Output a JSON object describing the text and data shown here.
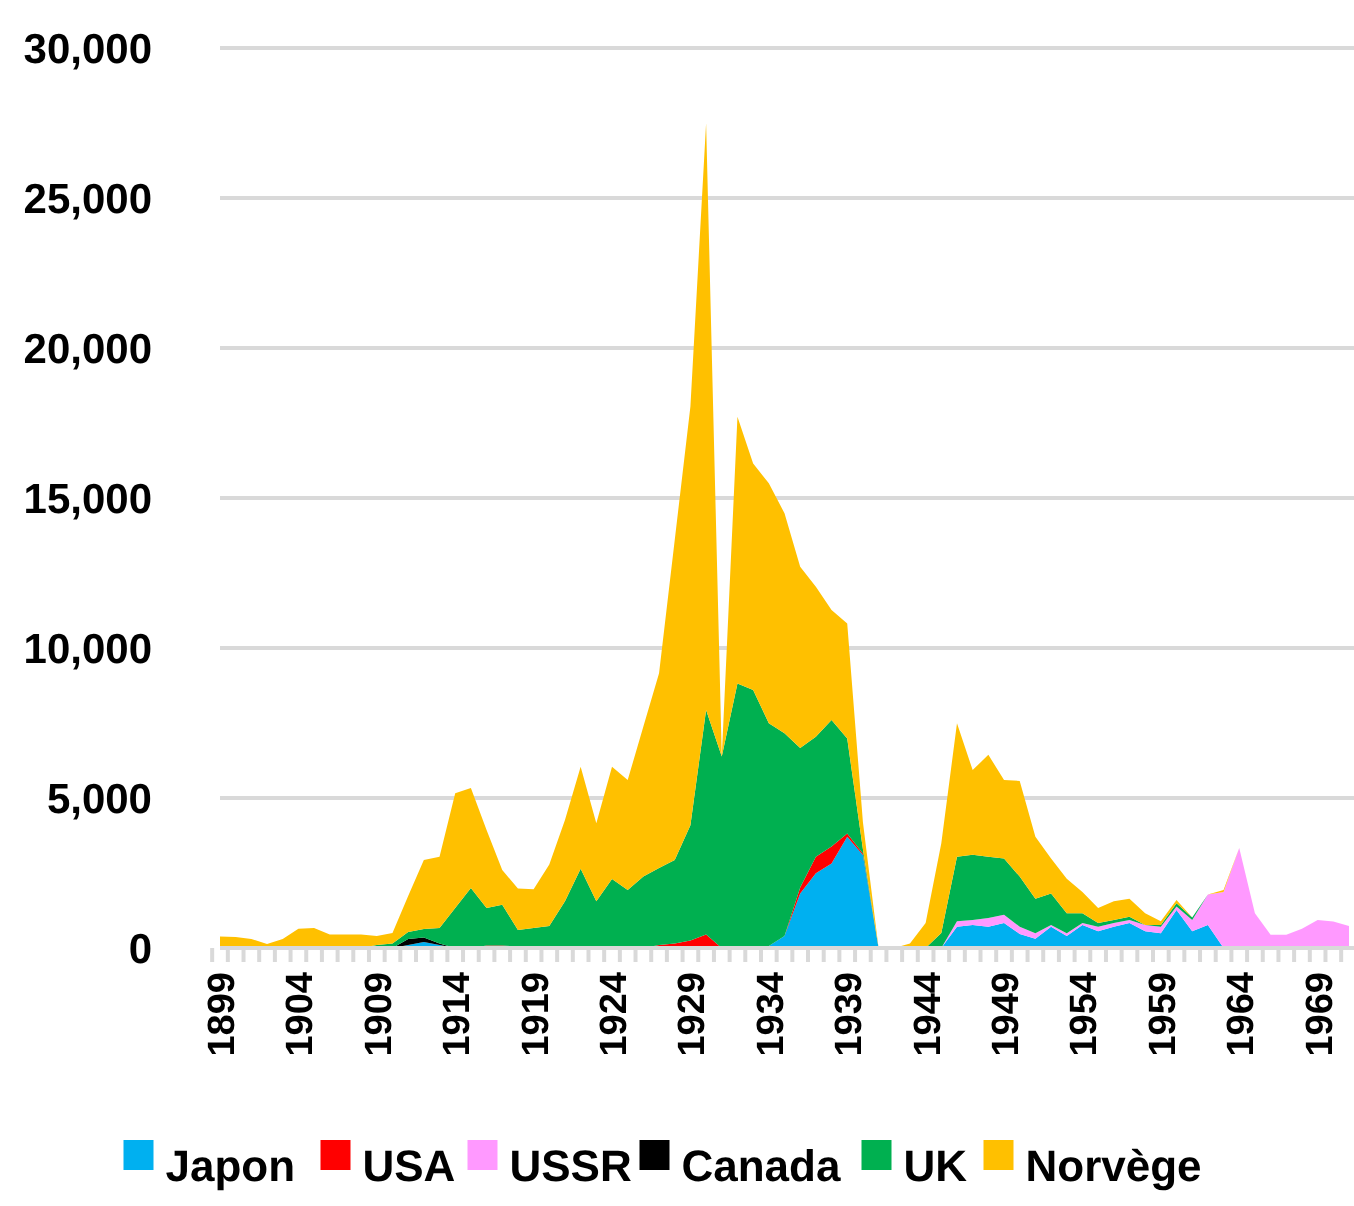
{
  "chart_data": {
    "type": "area",
    "stacked": true,
    "categories": [
      "1899",
      null,
      null,
      null,
      null,
      "1904",
      null,
      null,
      null,
      null,
      "1909",
      null,
      null,
      null,
      null,
      "1914",
      null,
      null,
      null,
      null,
      "1919",
      null,
      null,
      null,
      null,
      "1924",
      null,
      null,
      null,
      null,
      "1929",
      null,
      null,
      null,
      null,
      "1934",
      null,
      null,
      null,
      null,
      "1939",
      null,
      null,
      null,
      null,
      "1944",
      null,
      null,
      null,
      null,
      "1949",
      null,
      null,
      null,
      null,
      "1954",
      null,
      null,
      null,
      null,
      "1959",
      null,
      null,
      null,
      null,
      "1964",
      null,
      null,
      null,
      null,
      "1969",
      null,
      null
    ],
    "series": [
      {
        "name": "Japon",
        "color": "#00b0f0",
        "values": [
          null,
          null,
          null,
          null,
          null,
          null,
          null,
          null,
          null,
          null,
          null,
          0,
          100,
          200,
          100,
          0,
          null,
          null,
          null,
          null,
          null,
          null,
          null,
          null,
          null,
          null,
          null,
          null,
          null,
          null,
          null,
          null,
          null,
          null,
          0,
          70,
          400,
          1820,
          2490,
          2820,
          3710,
          3100,
          0,
          null,
          null,
          null,
          0,
          710,
          770,
          710,
          830,
          470,
          310,
          710,
          400,
          770,
          560,
          710,
          830,
          560,
          490,
          1270,
          560,
          770,
          0,
          null,
          null,
          null,
          null,
          null,
          null,
          null,
          null
        ]
      },
      {
        "name": "USA",
        "color": "#ff0000",
        "values": [
          null,
          null,
          null,
          null,
          null,
          null,
          null,
          null,
          null,
          null,
          null,
          null,
          null,
          null,
          null,
          null,
          0,
          80,
          80,
          50,
          0,
          null,
          null,
          null,
          null,
          null,
          null,
          0,
          100,
          150,
          250,
          450,
          0,
          null,
          null,
          null,
          0,
          200,
          550,
          560,
          110,
          50,
          0,
          null,
          null,
          null,
          null,
          null,
          null,
          null,
          null,
          null,
          null,
          null,
          null,
          null,
          null,
          null,
          null,
          null,
          null,
          null,
          null,
          null,
          null,
          null,
          null,
          null,
          null,
          null,
          null,
          null,
          null
        ]
      },
      {
        "name": "USSR",
        "color": "#ff99ff",
        "values": [
          null,
          null,
          null,
          null,
          null,
          null,
          null,
          null,
          null,
          null,
          null,
          null,
          null,
          null,
          null,
          null,
          null,
          null,
          null,
          null,
          null,
          null,
          null,
          null,
          null,
          null,
          null,
          null,
          null,
          null,
          null,
          null,
          null,
          null,
          null,
          null,
          null,
          null,
          null,
          null,
          null,
          null,
          null,
          null,
          null,
          null,
          0,
          180,
          160,
          290,
          280,
          240,
          180,
          60,
          90,
          60,
          150,
          120,
          100,
          210,
          220,
          110,
          370,
          1010,
          1870,
          3330,
          1160,
          440,
          440,
          640,
          930,
          880,
          730
        ]
      },
      {
        "name": "Canada",
        "color": "#000000",
        "values": [
          null,
          null,
          null,
          null,
          null,
          null,
          null,
          null,
          null,
          null,
          null,
          0,
          200,
          150,
          50,
          0,
          null,
          null,
          null,
          null,
          null,
          null,
          null,
          null,
          null,
          null,
          null,
          null,
          null,
          null,
          null,
          null,
          null,
          null,
          null,
          null,
          null,
          null,
          null,
          null,
          null,
          null,
          null,
          null,
          null,
          null,
          null,
          null,
          null,
          null,
          null,
          null,
          null,
          null,
          null,
          null,
          null,
          null,
          null,
          null,
          null,
          null,
          null,
          null,
          null,
          null,
          null,
          null,
          null,
          null,
          null,
          null,
          null
        ]
      },
      {
        "name": "UK",
        "color": "#00b050",
        "values": [
          null,
          null,
          null,
          null,
          null,
          null,
          null,
          null,
          null,
          0,
          100,
          150,
          230,
          280,
          520,
          1330,
          2000,
          1250,
          1360,
          550,
          670,
          730,
          1560,
          2640,
          1560,
          2300,
          1930,
          2380,
          2570,
          2780,
          3840,
          7480,
          6380,
          8820,
          8600,
          7420,
          6760,
          4650,
          4000,
          4220,
          3160,
          150,
          0,
          null,
          null,
          0,
          500,
          2150,
          2180,
          2040,
          1870,
          1670,
          1150,
          1050,
          670,
          330,
          120,
          100,
          110,
          0,
          60,
          110,
          90,
          0,
          null,
          null,
          null,
          null,
          null,
          null,
          null,
          null,
          null
        ]
      },
      {
        "name": "Norvège",
        "color": "#ffc000",
        "values": [
          380,
          370,
          300,
          130,
          300,
          640,
          670,
          450,
          450,
          450,
          300,
          350,
          1200,
          2300,
          2370,
          3830,
          3330,
          2600,
          1160,
          1380,
          1290,
          2050,
          2710,
          3400,
          2600,
          3740,
          3670,
          5000,
          6490,
          10670,
          13960,
          19560,
          0,
          8890,
          7550,
          8000,
          7330,
          6040,
          5000,
          3670,
          3840,
          900,
          0,
          0,
          150,
          830,
          2990,
          4450,
          2820,
          3400,
          2620,
          3190,
          2070,
          1160,
          1150,
          710,
          500,
          630,
          600,
          390,
          120,
          110,
          0,
          0,
          60,
          0,
          null,
          null,
          null,
          null,
          null,
          null,
          null
        ]
      }
    ],
    "ylim": [
      0,
      30000
    ],
    "yticks": [
      0,
      {
        "value": 5000,
        "label": "5,000"
      },
      {
        "value": 10000,
        "label": "10,000"
      },
      {
        "value": 15000,
        "label": "15,000"
      },
      {
        "value": 20000,
        "label": "20,000"
      },
      {
        "value": 25000,
        "label": "25,000"
      },
      {
        "value": 30000,
        "label": "30,000"
      }
    ],
    "grid": "y",
    "legend": "bottom"
  }
}
